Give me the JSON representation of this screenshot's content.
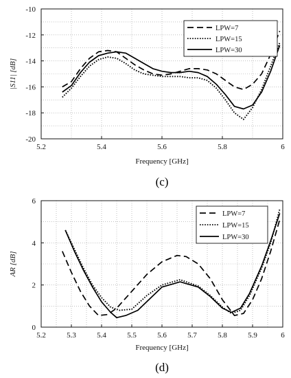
{
  "chart_data": [
    {
      "type": "line",
      "panel_label": "(c)",
      "xlabel": "Frequency [GHz]",
      "ylabel": "|S11| [dB]",
      "xlim": [
        5.2,
        6.0
      ],
      "ylim": [
        -20,
        -10
      ],
      "xticks": [
        5.2,
        5.4,
        5.6,
        5.8,
        6.0
      ],
      "xtick_labels": [
        "5.2",
        "5.4",
        "5.6",
        "5.8",
        "6"
      ],
      "yticks": [
        -20,
        -18,
        -16,
        -14,
        -12,
        -10
      ],
      "ytick_labels": [
        "-20",
        "-18",
        "-16",
        "-14",
        "-12",
        "-10"
      ],
      "grid": true,
      "legend_position": "top-right",
      "series": [
        {
          "name": "LPW=7",
          "style": "dashed",
          "x": [
            5.27,
            5.3,
            5.33,
            5.36,
            5.39,
            5.42,
            5.45,
            5.48,
            5.51,
            5.54,
            5.57,
            5.6,
            5.63,
            5.66,
            5.69,
            5.72,
            5.75,
            5.78,
            5.81,
            5.84,
            5.87,
            5.9,
            5.93,
            5.96,
            5.99
          ],
          "y": [
            -16.0,
            -15.6,
            -14.6,
            -13.8,
            -13.3,
            -13.2,
            -13.3,
            -13.8,
            -14.3,
            -14.7,
            -15.0,
            -15.1,
            -15.0,
            -14.8,
            -14.6,
            -14.6,
            -14.7,
            -15.0,
            -15.5,
            -16.0,
            -16.2,
            -15.8,
            -15.0,
            -13.5,
            -11.7
          ]
        },
        {
          "name": "LPW=15",
          "style": "dotted",
          "x": [
            5.27,
            5.3,
            5.33,
            5.36,
            5.39,
            5.42,
            5.45,
            5.48,
            5.51,
            5.54,
            5.57,
            5.6,
            5.63,
            5.66,
            5.69,
            5.72,
            5.75,
            5.78,
            5.81,
            5.84,
            5.87,
            5.9,
            5.93,
            5.96,
            5.99
          ],
          "y": [
            -16.8,
            -16.1,
            -15.2,
            -14.4,
            -13.9,
            -13.7,
            -13.8,
            -14.2,
            -14.7,
            -15.0,
            -15.1,
            -15.2,
            -15.2,
            -15.2,
            -15.3,
            -15.3,
            -15.5,
            -16.1,
            -17.0,
            -18.0,
            -18.5,
            -17.6,
            -16.2,
            -14.4,
            -12.6
          ]
        },
        {
          "name": "LPW=30",
          "style": "solid",
          "x": [
            5.27,
            5.3,
            5.33,
            5.36,
            5.39,
            5.42,
            5.45,
            5.48,
            5.51,
            5.54,
            5.57,
            5.6,
            5.63,
            5.66,
            5.69,
            5.72,
            5.75,
            5.78,
            5.81,
            5.84,
            5.87,
            5.9,
            5.93,
            5.96,
            5.99
          ],
          "y": [
            -16.4,
            -15.9,
            -14.9,
            -14.1,
            -13.6,
            -13.4,
            -13.3,
            -13.4,
            -13.8,
            -14.2,
            -14.6,
            -14.8,
            -14.9,
            -14.9,
            -14.8,
            -14.9,
            -15.2,
            -15.8,
            -16.6,
            -17.5,
            -17.7,
            -17.4,
            -16.4,
            -14.8,
            -12.8
          ]
        }
      ]
    },
    {
      "type": "line",
      "panel_label": "(d)",
      "xlabel": "Frequency [GHz]",
      "ylabel": "AR  [dB]",
      "xlim": [
        5.2,
        6.0
      ],
      "ylim": [
        0,
        6
      ],
      "xticks": [
        5.2,
        5.3,
        5.4,
        5.5,
        5.6,
        5.7,
        5.8,
        5.9,
        6.0
      ],
      "xtick_labels": [
        "5.2",
        "5.3",
        "5.4",
        "5.5",
        "5.6",
        "5.7",
        "5.8",
        "5.9",
        "6"
      ],
      "yticks": [
        0,
        2,
        4,
        6
      ],
      "ytick_labels": [
        "0",
        "2",
        "4",
        "6"
      ],
      "grid": true,
      "legend_position": "top-right",
      "series": [
        {
          "name": "LPW=7",
          "style": "dashed",
          "x": [
            5.27,
            5.3,
            5.33,
            5.36,
            5.39,
            5.42,
            5.45,
            5.5,
            5.55,
            5.6,
            5.65,
            5.68,
            5.72,
            5.76,
            5.8,
            5.84,
            5.87,
            5.9,
            5.93,
            5.96,
            5.99
          ],
          "y": [
            3.6,
            2.6,
            1.7,
            1.0,
            0.55,
            0.6,
            0.9,
            1.7,
            2.5,
            3.1,
            3.4,
            3.35,
            3.0,
            2.3,
            1.3,
            0.55,
            0.65,
            1.3,
            2.3,
            3.6,
            5.1
          ]
        },
        {
          "name": "LPW=15",
          "style": "dotted",
          "x": [
            5.28,
            5.31,
            5.34,
            5.37,
            5.4,
            5.43,
            5.46,
            5.5,
            5.55,
            5.6,
            5.66,
            5.72,
            5.76,
            5.8,
            5.83,
            5.86,
            5.89,
            5.93,
            5.96,
            5.99
          ],
          "y": [
            4.6,
            3.7,
            2.8,
            2.0,
            1.4,
            0.95,
            0.8,
            0.85,
            1.5,
            2.0,
            2.25,
            1.95,
            1.5,
            0.95,
            0.65,
            0.8,
            1.5,
            2.8,
            4.0,
            5.6
          ]
        },
        {
          "name": "LPW=30",
          "style": "solid",
          "x": [
            5.28,
            5.31,
            5.34,
            5.37,
            5.4,
            5.43,
            5.45,
            5.48,
            5.52,
            5.56,
            5.6,
            5.66,
            5.72,
            5.76,
            5.8,
            5.83,
            5.86,
            5.89,
            5.93,
            5.96,
            5.99
          ],
          "y": [
            4.6,
            3.6,
            2.7,
            1.9,
            1.2,
            0.7,
            0.45,
            0.55,
            0.8,
            1.35,
            1.9,
            2.15,
            1.9,
            1.45,
            0.9,
            0.7,
            0.9,
            1.6,
            2.9,
            4.1,
            5.4
          ]
        }
      ]
    }
  ]
}
